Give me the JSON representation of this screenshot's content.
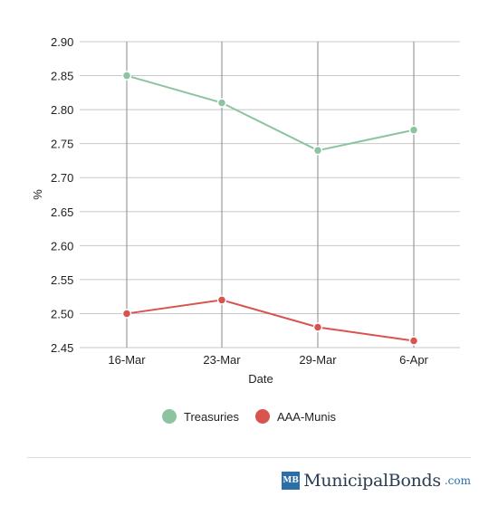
{
  "chart_data": {
    "type": "line",
    "xlabel": "Date",
    "ylabel": "%",
    "categories": [
      "16-Mar",
      "23-Mar",
      "29-Mar",
      "6-Apr"
    ],
    "ylim": [
      2.45,
      2.9
    ],
    "yticks": [
      "2.90",
      "2.85",
      "2.80",
      "2.75",
      "2.70",
      "2.65",
      "2.60",
      "2.55",
      "2.50",
      "2.45"
    ],
    "grid": true,
    "legend_position": "bottom",
    "series": [
      {
        "name": "Treasuries",
        "color": "#8cc4a0",
        "values": [
          2.85,
          2.81,
          2.74,
          2.77
        ]
      },
      {
        "name": "AAA-Munis",
        "color": "#d9534f",
        "values": [
          2.5,
          2.52,
          2.48,
          2.46
        ]
      }
    ]
  },
  "legend": {
    "items": [
      {
        "label": "Treasuries",
        "color": "#8cc4a0"
      },
      {
        "label": "AAA-Munis",
        "color": "#d9534f"
      }
    ]
  },
  "brand": {
    "badge": "MB",
    "name": "MunicipalBonds",
    "tld": ".com",
    "color": "#2b6ea8"
  }
}
